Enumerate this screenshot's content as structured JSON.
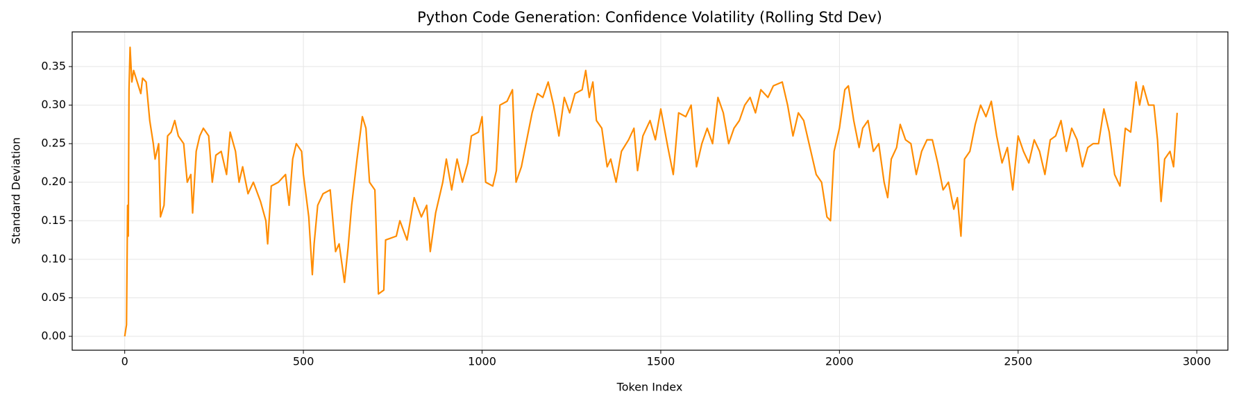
{
  "chart_data": {
    "type": "line",
    "title": "Python Code Generation: Confidence Volatility (Rolling Std Dev)",
    "xlabel": "Token Index",
    "ylabel": "Standard Deviation",
    "x": [
      0,
      5,
      8,
      10,
      12,
      15,
      20,
      25,
      35,
      45,
      50,
      60,
      70,
      80,
      85,
      95,
      100,
      110,
      120,
      130,
      140,
      150,
      165,
      175,
      185,
      190,
      200,
      210,
      220,
      235,
      245,
      255,
      270,
      285,
      295,
      310,
      320,
      330,
      345,
      360,
      380,
      395,
      400,
      410,
      430,
      450,
      460,
      470,
      480,
      495,
      500,
      515,
      525,
      530,
      540,
      555,
      575,
      590,
      600,
      615,
      625,
      635,
      650,
      665,
      675,
      685,
      700,
      710,
      725,
      730,
      760,
      770,
      790,
      810,
      830,
      845,
      855,
      870,
      890,
      900,
      915,
      930,
      945,
      960,
      970,
      990,
      1000,
      1010,
      1030,
      1040,
      1050,
      1070,
      1085,
      1095,
      1110,
      1125,
      1140,
      1155,
      1170,
      1185,
      1200,
      1215,
      1230,
      1245,
      1260,
      1280,
      1290,
      1300,
      1310,
      1320,
      1335,
      1350,
      1360,
      1375,
      1390,
      1410,
      1425,
      1435,
      1450,
      1470,
      1485,
      1500,
      1520,
      1535,
      1550,
      1570,
      1585,
      1600,
      1615,
      1630,
      1645,
      1660,
      1675,
      1690,
      1705,
      1720,
      1735,
      1750,
      1765,
      1780,
      1800,
      1815,
      1840,
      1855,
      1870,
      1885,
      1900,
      1915,
      1935,
      1950,
      1965,
      1975,
      1985,
      2000,
      2015,
      2025,
      2040,
      2055,
      2065,
      2080,
      2095,
      2110,
      2125,
      2135,
      2145,
      2160,
      2170,
      2185,
      2200,
      2215,
      2230,
      2245,
      2260,
      2275,
      2290,
      2305,
      2320,
      2330,
      2340,
      2350,
      2365,
      2380,
      2395,
      2410,
      2425,
      2440,
      2455,
      2470,
      2485,
      2500,
      2515,
      2530,
      2545,
      2560,
      2575,
      2590,
      2605,
      2620,
      2635,
      2650,
      2665,
      2680,
      2695,
      2710,
      2725,
      2740,
      2755,
      2770,
      2785,
      2800,
      2815,
      2830,
      2840,
      2850,
      2865,
      2880,
      2890,
      2900,
      2910,
      2925,
      2935,
      2945
    ],
    "series": [
      {
        "name": "Rolling Std Dev",
        "color": "#ff8c00",
        "values": [
          0,
          0.015,
          0.17,
          0.13,
          0.32,
          0.375,
          0.33,
          0.345,
          0.33,
          0.315,
          0.335,
          0.33,
          0.28,
          0.25,
          0.23,
          0.25,
          0.155,
          0.17,
          0.26,
          0.265,
          0.28,
          0.26,
          0.25,
          0.2,
          0.21,
          0.16,
          0.24,
          0.26,
          0.27,
          0.26,
          0.2,
          0.235,
          0.24,
          0.21,
          0.265,
          0.24,
          0.2,
          0.22,
          0.185,
          0.2,
          0.175,
          0.15,
          0.12,
          0.195,
          0.2,
          0.21,
          0.17,
          0.23,
          0.25,
          0.24,
          0.21,
          0.155,
          0.08,
          0.12,
          0.17,
          0.185,
          0.19,
          0.11,
          0.12,
          0.07,
          0.115,
          0.17,
          0.23,
          0.285,
          0.27,
          0.2,
          0.19,
          0.055,
          0.06,
          0.125,
          0.13,
          0.15,
          0.125,
          0.18,
          0.155,
          0.17,
          0.11,
          0.16,
          0.2,
          0.23,
          0.19,
          0.23,
          0.2,
          0.225,
          0.26,
          0.265,
          0.285,
          0.2,
          0.195,
          0.215,
          0.3,
          0.305,
          0.32,
          0.2,
          0.22,
          0.255,
          0.29,
          0.315,
          0.31,
          0.33,
          0.3,
          0.26,
          0.31,
          0.29,
          0.315,
          0.32,
          0.345,
          0.31,
          0.33,
          0.28,
          0.27,
          0.22,
          0.23,
          0.2,
          0.24,
          0.255,
          0.27,
          0.215,
          0.26,
          0.28,
          0.255,
          0.295,
          0.245,
          0.21,
          0.29,
          0.285,
          0.3,
          0.22,
          0.25,
          0.27,
          0.25,
          0.31,
          0.29,
          0.25,
          0.27,
          0.28,
          0.3,
          0.31,
          0.29,
          0.32,
          0.31,
          0.325,
          0.33,
          0.3,
          0.26,
          0.29,
          0.28,
          0.25,
          0.21,
          0.2,
          0.155,
          0.15,
          0.24,
          0.27,
          0.32,
          0.325,
          0.28,
          0.245,
          0.27,
          0.28,
          0.24,
          0.25,
          0.2,
          0.18,
          0.23,
          0.245,
          0.275,
          0.255,
          0.25,
          0.21,
          0.24,
          0.255,
          0.255,
          0.225,
          0.19,
          0.2,
          0.165,
          0.18,
          0.13,
          0.23,
          0.24,
          0.275,
          0.3,
          0.285,
          0.305,
          0.26,
          0.225,
          0.245,
          0.19,
          0.26,
          0.24,
          0.225,
          0.255,
          0.24,
          0.21,
          0.255,
          0.26,
          0.28,
          0.24,
          0.27,
          0.255,
          0.22,
          0.245,
          0.25,
          0.25,
          0.295,
          0.265,
          0.21,
          0.195,
          0.27,
          0.265,
          0.33,
          0.3,
          0.325,
          0.3,
          0.3,
          0.255,
          0.175,
          0.23,
          0.24,
          0.22,
          0.29
        ]
      }
    ],
    "xlim": [
      -147,
      3087
    ],
    "ylim": [
      -0.018,
      0.395
    ],
    "xticks": [
      0,
      500,
      1000,
      1500,
      2000,
      2500,
      3000
    ],
    "yticks": [
      {
        "value": 0,
        "label": "0.00"
      },
      0.05,
      {
        "value": 0.1,
        "label": "0.10"
      },
      0.15,
      {
        "value": 0.2,
        "label": "0.20"
      },
      0.25,
      {
        "value": 0.3,
        "label": "0.30"
      },
      0.35
    ],
    "grid": true
  }
}
